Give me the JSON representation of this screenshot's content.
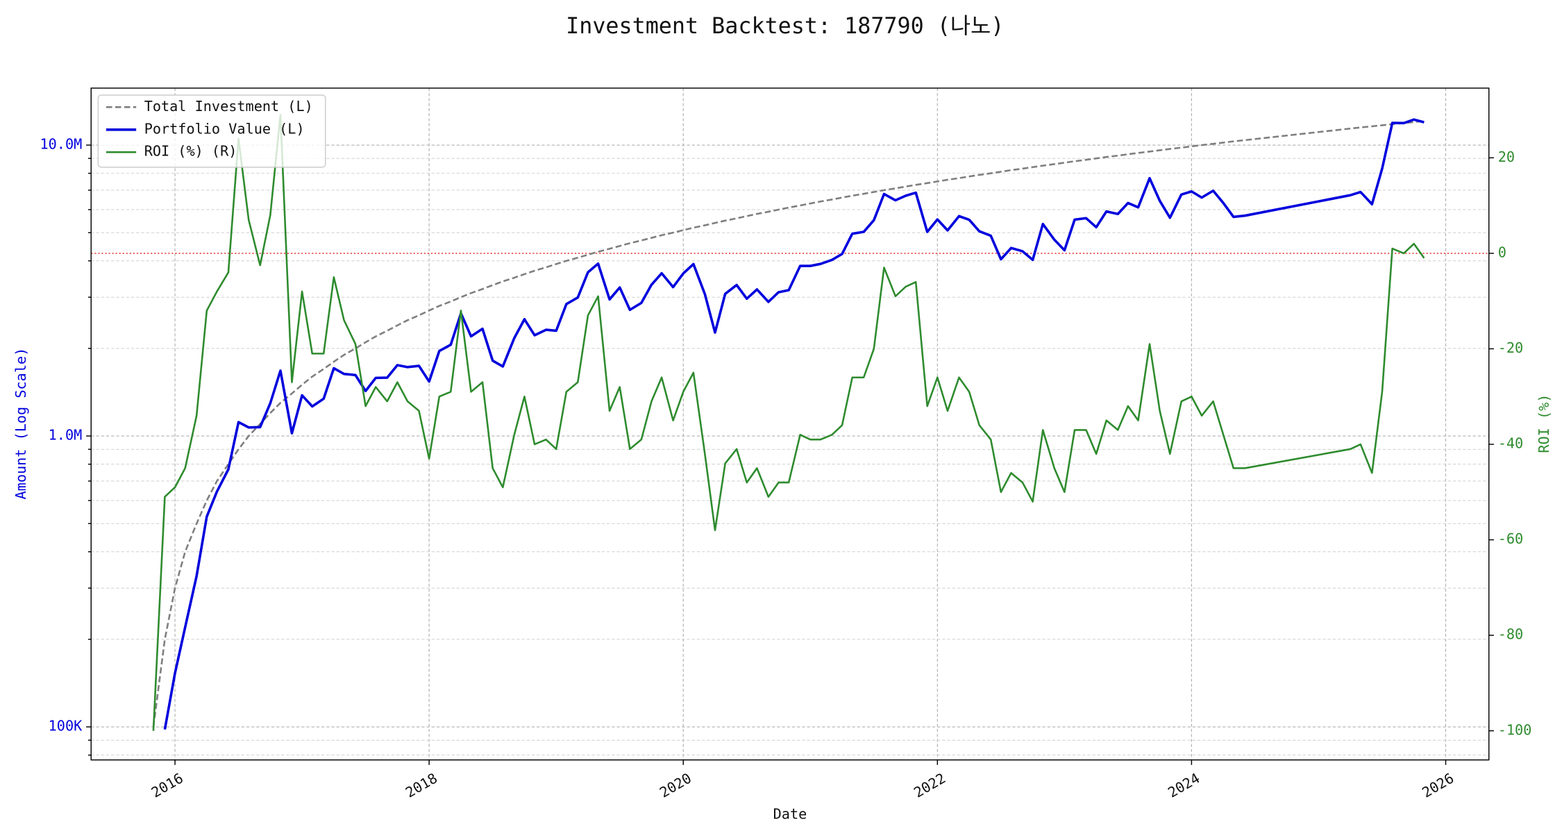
{
  "chart_data": {
    "type": "line",
    "title": "Investment Backtest: 187790 (나노)",
    "xlabel": "Date",
    "ylabel": "Amount (Log Scale)",
    "y2label": "ROI (%)",
    "x": [
      2015.83,
      2015.92,
      2016.0,
      2016.08,
      2016.17,
      2016.25,
      2016.33,
      2016.42,
      2016.5,
      2016.58,
      2016.67,
      2016.75,
      2016.83,
      2016.92,
      2017.0,
      2017.08,
      2017.17,
      2017.25,
      2017.33,
      2017.42,
      2017.5,
      2017.58,
      2017.67,
      2017.75,
      2017.83,
      2017.92,
      2018.0,
      2018.08,
      2018.17,
      2018.25,
      2018.33,
      2018.42,
      2018.5,
      2018.58,
      2018.67,
      2018.75,
      2018.83,
      2018.92,
      2019.0,
      2019.08,
      2019.17,
      2019.25,
      2019.33,
      2019.42,
      2019.5,
      2019.58,
      2019.67,
      2019.75,
      2019.83,
      2019.92,
      2020.0,
      2020.08,
      2020.17,
      2020.25,
      2020.33,
      2020.42,
      2020.5,
      2020.58,
      2020.67,
      2020.75,
      2020.83,
      2020.92,
      2021.0,
      2021.08,
      2021.17,
      2021.25,
      2021.33,
      2021.42,
      2021.5,
      2021.58,
      2021.67,
      2021.75,
      2021.83,
      2021.92,
      2022.0,
      2022.08,
      2022.17,
      2022.25,
      2022.33,
      2022.42,
      2022.5,
      2022.58,
      2022.67,
      2022.75,
      2022.83,
      2022.92,
      2023.0,
      2023.08,
      2023.17,
      2023.25,
      2023.33,
      2023.42,
      2023.5,
      2023.58,
      2023.67,
      2023.75,
      2023.83,
      2023.92,
      2024.0,
      2024.08,
      2024.17,
      2024.25,
      2024.33,
      2024.42,
      2025.25,
      2025.33,
      2025.42,
      2025.5,
      2025.58,
      2025.67,
      2025.75,
      2025.83
    ],
    "xlim": [
      2015.34,
      2026.34
    ],
    "xticks": [
      2016,
      2018,
      2020,
      2022,
      2024,
      2026
    ],
    "yscale": "log",
    "ylim": [
      77000,
      15700000
    ],
    "yticks": [
      {
        "value": 100000,
        "label": "100K"
      },
      {
        "value": 1000000,
        "label": "1.0M"
      },
      {
        "value": 10000000,
        "label": "10.0M"
      }
    ],
    "yminor": [
      80000,
      90000,
      200000,
      300000,
      400000,
      500000,
      600000,
      700000,
      800000,
      900000,
      2000000,
      3000000,
      4000000,
      5000000,
      6000000,
      7000000,
      8000000,
      9000000
    ],
    "y2lim": [
      -106.1,
      34.6
    ],
    "y2ticks": [
      -100,
      -80,
      -60,
      -40,
      -20,
      0,
      20
    ],
    "grid": true,
    "legend": "upper left",
    "reference_line": {
      "axis": "y2",
      "value": 0,
      "color": "#e02020",
      "style": "dotted"
    },
    "series": [
      {
        "name": "Total Investment (L)",
        "color": "#7f7f7f",
        "style": "dashed",
        "values": [
          100000,
          200000,
          300000,
          400000,
          500000,
          600000,
          700000,
          800000,
          900000,
          1000000,
          1100000,
          1200000,
          1300000,
          1400000,
          1500000,
          1600000,
          1700000,
          1800000,
          1900000,
          2000000,
          2100000,
          2200000,
          2300000,
          2400000,
          2500000,
          2600000,
          2700000,
          2800000,
          2900000,
          3000000,
          3100000,
          3200000,
          3300000,
          3400000,
          3500000,
          3600000,
          3700000,
          3800000,
          3900000,
          4000000,
          4100000,
          4200000,
          4300000,
          4400000,
          4500000,
          4600000,
          4700000,
          4800000,
          4900000,
          5000000,
          5100000,
          5200000,
          5300000,
          5400000,
          5500000,
          5600000,
          5700000,
          5800000,
          5900000,
          6000000,
          6100000,
          6200000,
          6300000,
          6400000,
          6500000,
          6600000,
          6700000,
          6800000,
          6900000,
          7000000,
          7100000,
          7200000,
          7300000,
          7400000,
          7500000,
          7600000,
          7700000,
          7800000,
          7900000,
          8000000,
          8100000,
          8200000,
          8300000,
          8400000,
          8500000,
          8600000,
          8700000,
          8800000,
          8900000,
          9000000,
          9100000,
          9200000,
          9300000,
          9400000,
          9500000,
          9600000,
          9700000,
          9800000,
          9900000,
          10000000,
          10100000,
          10200000,
          10300000,
          10400000,
          11400000,
          11500000,
          11600000,
          11700000,
          11800000,
          11900000,
          12000000,
          12100000
        ]
      },
      {
        "name": "Portfolio Value (L)",
        "color": "#0000dd",
        "style": "solid",
        "values": [
          null,
          98000,
          153000,
          220000,
          330000,
          528000,
          644000,
          768000,
          1116000,
          1070000,
          1072500,
          1296000,
          1677000,
          1022000,
          1380000,
          1264000,
          1343000,
          1710000,
          1634000,
          1620000,
          1428000,
          1584000,
          1587000,
          1752000,
          1725000,
          1742000,
          1539000,
          1960000,
          2059000,
          2640000,
          2201000,
          2336000,
          1815000,
          1734000,
          2170000,
          2520000,
          2220000,
          2318000,
          2301000,
          2840000,
          2993000,
          3654000,
          3913000,
          2948000,
          3240000,
          2714000,
          2867000,
          3312000,
          3626000,
          3250000,
          3621000,
          3900000,
          3074000,
          2268000,
          3080000,
          3304000,
          2964000,
          3190000,
          2891000,
          3120000,
          3172000,
          3844000,
          3843000,
          3904000,
          4030000,
          4224000,
          4958000,
          5032000,
          5520000,
          6790000,
          6461000,
          6696000,
          6862000,
          5032000,
          5550000,
          5092000,
          5698000,
          5538000,
          5056000,
          4880000,
          4050000,
          4428000,
          4316000,
          4032000,
          5355000,
          4730000,
          4350000,
          5544000,
          5607000,
          5220000,
          5915000,
          5796000,
          6324000,
          6110000,
          7695000,
          6432000,
          5626000,
          6762000,
          6930000,
          6600000,
          6969000,
          6324000,
          5665000,
          5720000,
          6726000,
          6900000,
          6264000,
          8307000,
          11918000,
          11900000,
          12240000,
          11979000
        ]
      },
      {
        "name": "ROI (%) (R)",
        "color": "#2e8b2e",
        "style": "solid",
        "axis": "y2",
        "values": [
          -100,
          -51,
          -49,
          -45,
          -34,
          -12,
          -8,
          -4,
          24,
          7,
          -2.5,
          8,
          29,
          -27,
          -8,
          -21,
          -21,
          -5,
          -14,
          -19,
          -32,
          -28,
          -31,
          -27,
          -31,
          -33,
          -43,
          -30,
          -29,
          -12,
          -29,
          -27,
          -45,
          -49,
          -38,
          -30,
          -40,
          -39,
          -41,
          -29,
          -27,
          -13,
          -9,
          -33,
          -28,
          -41,
          -39,
          -31,
          -26,
          -35,
          -29,
          -25,
          -42,
          -58,
          -44,
          -41,
          -48,
          -45,
          -51,
          -48,
          -48,
          -38,
          -39,
          -39,
          -38,
          -36,
          -26,
          -26,
          -20,
          -3,
          -9,
          -7,
          -6,
          -32,
          -26,
          -33,
          -26,
          -29,
          -36,
          -39,
          -50,
          -46,
          -48,
          -52,
          -37,
          -45,
          -50,
          -37,
          -37,
          -42,
          -35,
          -37,
          -32,
          -35,
          -19,
          -33,
          -42,
          -31,
          -30,
          -34,
          -31,
          -38,
          -45,
          -45,
          -41,
          -40,
          -46,
          -29,
          1,
          0,
          2,
          -1
        ]
      }
    ]
  }
}
